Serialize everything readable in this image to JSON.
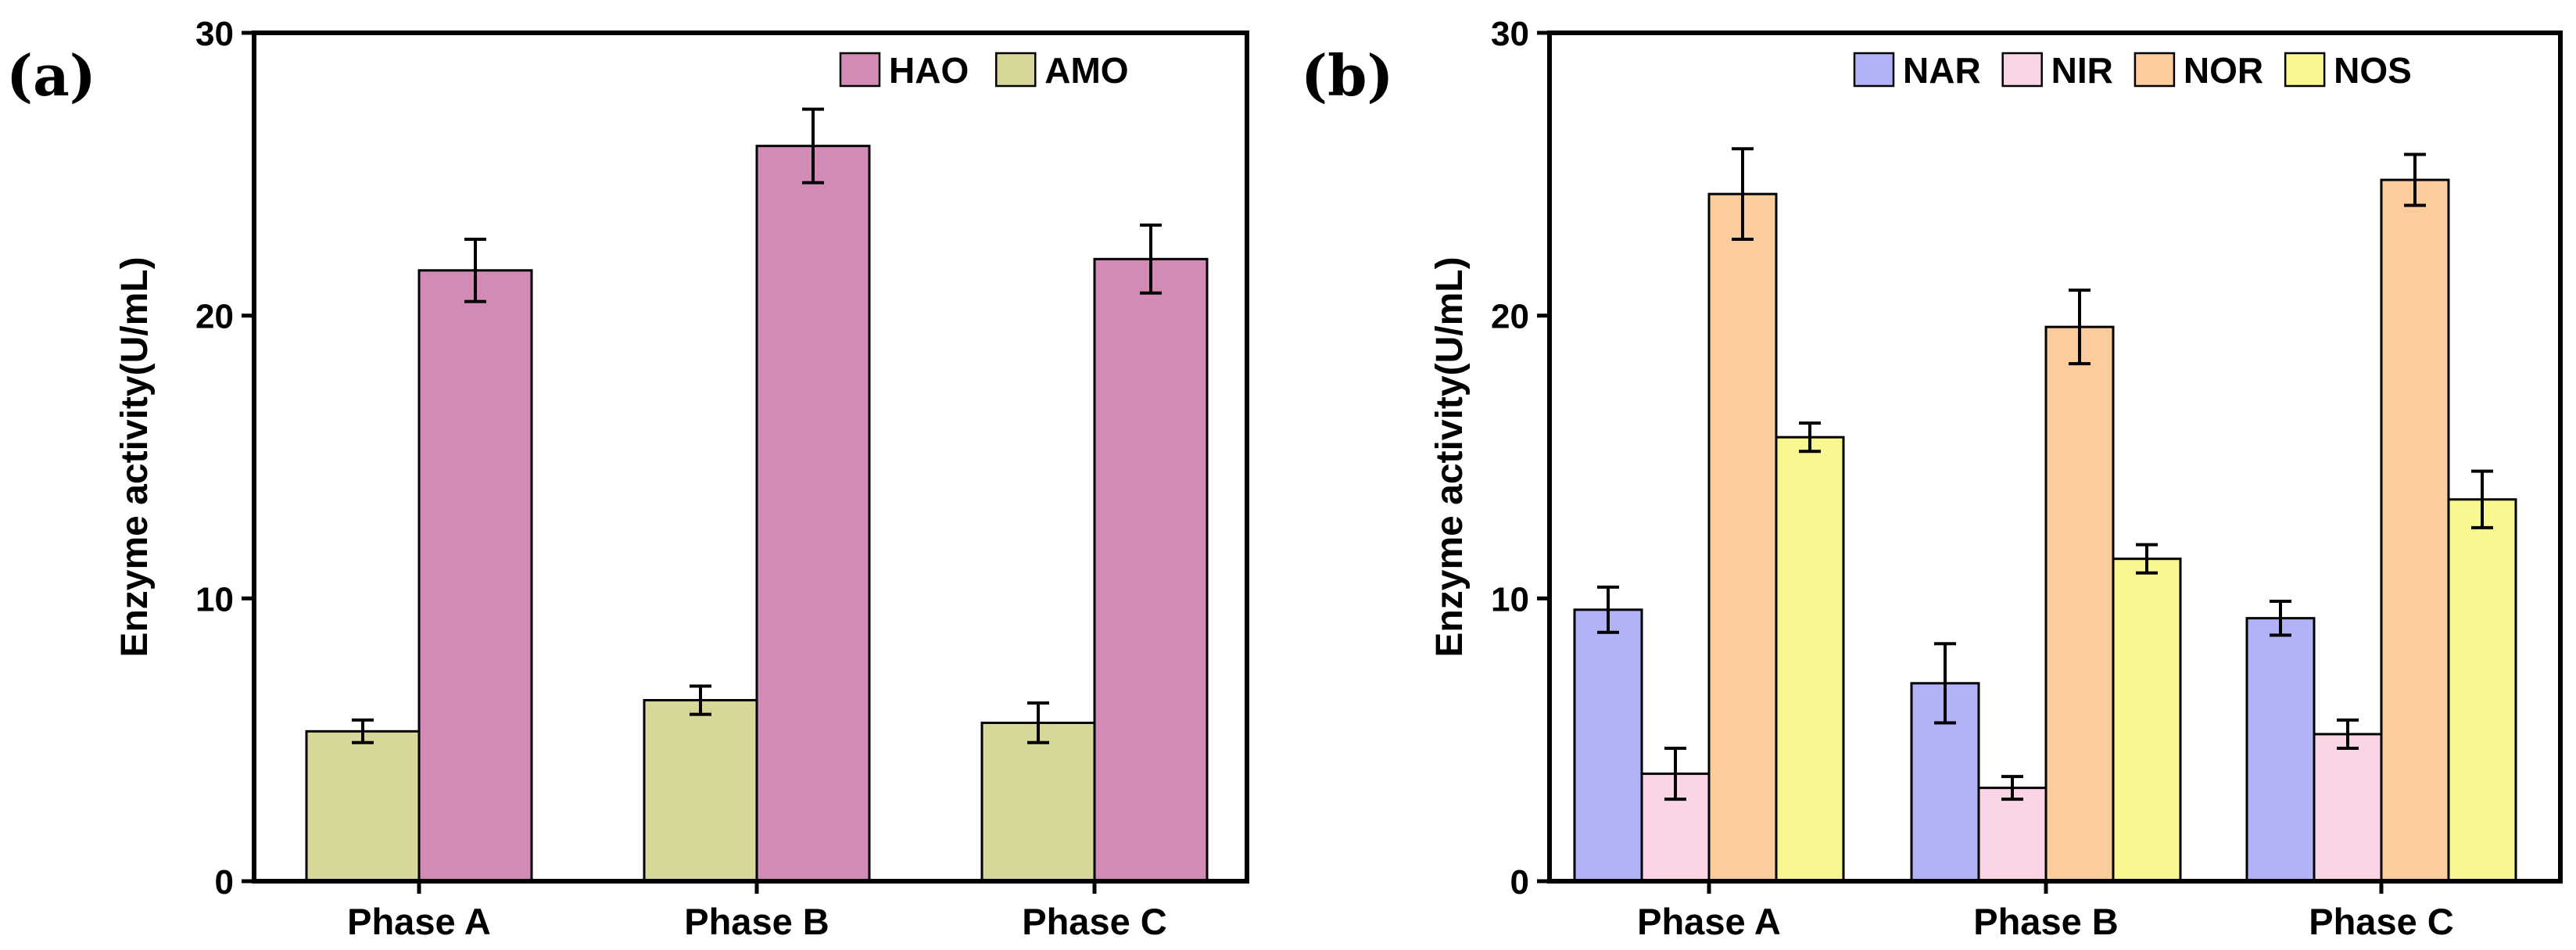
{
  "chart_data": [
    {
      "type": "bar",
      "panel_label": "(a)",
      "categories": [
        "Phase A",
        "Phase B",
        "Phase C"
      ],
      "ylabel": "Enzyme activity(U/mL)",
      "ylim": [
        0,
        30
      ],
      "yticks": [
        0,
        10,
        20,
        30
      ],
      "legend_position": "top-right",
      "legend_order": [
        "HAO",
        "AMO"
      ],
      "series": [
        {
          "name": "AMO",
          "color": "#d8d79a",
          "values": [
            5.3,
            6.4,
            5.6
          ],
          "errors": [
            0.4,
            0.5,
            0.7
          ]
        },
        {
          "name": "HAO",
          "color": "#d18bb5",
          "values": [
            21.6,
            26.0,
            22.0
          ],
          "errors": [
            1.1,
            1.3,
            1.2
          ]
        }
      ]
    },
    {
      "type": "bar",
      "panel_label": "(b)",
      "categories": [
        "Phase A",
        "Phase B",
        "Phase C"
      ],
      "ylabel": "Enzyme activity(U/mL)",
      "ylim": [
        0,
        30
      ],
      "yticks": [
        0,
        10,
        20,
        30
      ],
      "legend_position": "top-right",
      "legend_order": [
        "NAR",
        "NIR",
        "NOR",
        "NOS"
      ],
      "series": [
        {
          "name": "NAR",
          "color": "#b1b2f7",
          "values": [
            9.6,
            7.0,
            9.3
          ],
          "errors": [
            0.8,
            1.4,
            0.6
          ]
        },
        {
          "name": "NIR",
          "color": "#fbd4e6",
          "values": [
            3.8,
            3.3,
            5.2
          ],
          "errors": [
            0.9,
            0.4,
            0.5
          ]
        },
        {
          "name": "NOR",
          "color": "#fbcc9c",
          "values": [
            24.3,
            19.6,
            24.8
          ],
          "errors": [
            1.6,
            1.3,
            0.9
          ]
        },
        {
          "name": "NOS",
          "color": "#f9f78f",
          "values": [
            15.7,
            11.4,
            13.5
          ],
          "errors": [
            0.5,
            0.5,
            1.0
          ]
        }
      ]
    }
  ]
}
